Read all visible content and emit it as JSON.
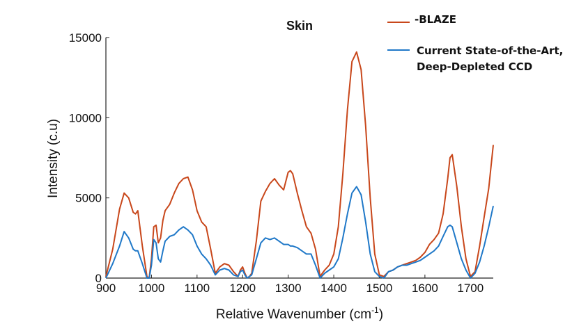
{
  "chart_data": {
    "type": "line",
    "title": "Skin",
    "xlabel": "Relative Wavenumber (cm",
    "xlabel_sup": "-1",
    "xlabel_suffix": ")",
    "ylabel": "Intensity (c.u)",
    "xlim": [
      900,
      1750
    ],
    "ylim": [
      0,
      15000
    ],
    "xticks": [
      900,
      1000,
      1100,
      1200,
      1300,
      1400,
      1500,
      1600,
      1700
    ],
    "yticks": [
      0,
      5000,
      10000,
      15000
    ],
    "grid": false,
    "legend_position": "top-right",
    "series": [
      {
        "name": "-BLAZE",
        "color": "#c8471b",
        "x": [
          900,
          915,
          930,
          940,
          950,
          960,
          965,
          970,
          980,
          990,
          995,
          1000,
          1005,
          1010,
          1015,
          1020,
          1025,
          1030,
          1040,
          1050,
          1060,
          1070,
          1080,
          1090,
          1100,
          1110,
          1120,
          1130,
          1140,
          1150,
          1160,
          1170,
          1180,
          1190,
          1195,
          1200,
          1205,
          1210,
          1215,
          1220,
          1230,
          1240,
          1250,
          1260,
          1270,
          1280,
          1290,
          1300,
          1305,
          1310,
          1320,
          1330,
          1340,
          1350,
          1360,
          1370,
          1380,
          1390,
          1400,
          1410,
          1420,
          1430,
          1440,
          1450,
          1460,
          1470,
          1480,
          1490,
          1500,
          1510,
          1520,
          1530,
          1540,
          1550,
          1560,
          1570,
          1580,
          1590,
          1600,
          1610,
          1620,
          1630,
          1640,
          1650,
          1655,
          1660,
          1670,
          1680,
          1690,
          1700,
          1710,
          1720,
          1730,
          1740,
          1750
        ],
        "values": [
          100,
          1800,
          4300,
          5300,
          5000,
          4100,
          4000,
          4200,
          2000,
          100,
          0,
          1200,
          3200,
          3300,
          2200,
          2500,
          3600,
          4200,
          4600,
          5300,
          5900,
          6200,
          6300,
          5500,
          4200,
          3500,
          3200,
          1800,
          300,
          700,
          900,
          800,
          400,
          100,
          500,
          700,
          300,
          0,
          100,
          300,
          2300,
          4800,
          5400,
          5900,
          6200,
          5800,
          5500,
          6600,
          6700,
          6500,
          5300,
          4200,
          3200,
          2800,
          1800,
          100,
          500,
          800,
          1500,
          3200,
          6500,
          10500,
          13500,
          14100,
          13000,
          9500,
          5000,
          1500,
          200,
          100,
          400,
          500,
          700,
          800,
          900,
          1000,
          1100,
          1300,
          1600,
          2100,
          2400,
          2800,
          4000,
          6200,
          7500,
          7700,
          5700,
          3200,
          1200,
          100,
          400,
          2000,
          3800,
          5600,
          8300
        ]
      },
      {
        "name": "Current State-of-the-Art, Deep-Depleted CCD",
        "color": "#1f78c8",
        "x": [
          900,
          915,
          930,
          940,
          950,
          960,
          965,
          970,
          980,
          990,
          995,
          1000,
          1005,
          1010,
          1015,
          1020,
          1025,
          1030,
          1040,
          1050,
          1060,
          1070,
          1080,
          1090,
          1100,
          1110,
          1120,
          1130,
          1140,
          1150,
          1160,
          1170,
          1180,
          1190,
          1195,
          1200,
          1205,
          1210,
          1215,
          1220,
          1230,
          1240,
          1250,
          1260,
          1270,
          1280,
          1290,
          1300,
          1305,
          1310,
          1320,
          1330,
          1340,
          1350,
          1360,
          1370,
          1380,
          1390,
          1400,
          1410,
          1420,
          1430,
          1440,
          1450,
          1460,
          1470,
          1480,
          1490,
          1500,
          1510,
          1520,
          1530,
          1540,
          1550,
          1560,
          1570,
          1580,
          1590,
          1600,
          1610,
          1620,
          1630,
          1640,
          1650,
          1655,
          1660,
          1670,
          1680,
          1690,
          1700,
          1710,
          1720,
          1730,
          1740,
          1750
        ],
        "values": [
          0,
          900,
          2000,
          2900,
          2500,
          1800,
          1700,
          1700,
          900,
          0,
          0,
          800,
          2400,
          2200,
          1200,
          1000,
          1700,
          2300,
          2600,
          2700,
          3000,
          3200,
          3000,
          2700,
          2000,
          1500,
          1200,
          800,
          200,
          500,
          600,
          500,
          200,
          100,
          400,
          500,
          200,
          0,
          100,
          200,
          1200,
          2200,
          2500,
          2400,
          2500,
          2300,
          2100,
          2100,
          2000,
          2000,
          1900,
          1700,
          1500,
          1500,
          800,
          0,
          300,
          500,
          700,
          1200,
          2500,
          4000,
          5300,
          5700,
          5200,
          3500,
          1500,
          400,
          100,
          0,
          400,
          500,
          700,
          800,
          800,
          900,
          1000,
          1100,
          1300,
          1500,
          1700,
          2000,
          2600,
          3200,
          3300,
          3200,
          2200,
          1200,
          500,
          0,
          300,
          1000,
          2000,
          3200,
          4500
        ]
      }
    ]
  }
}
